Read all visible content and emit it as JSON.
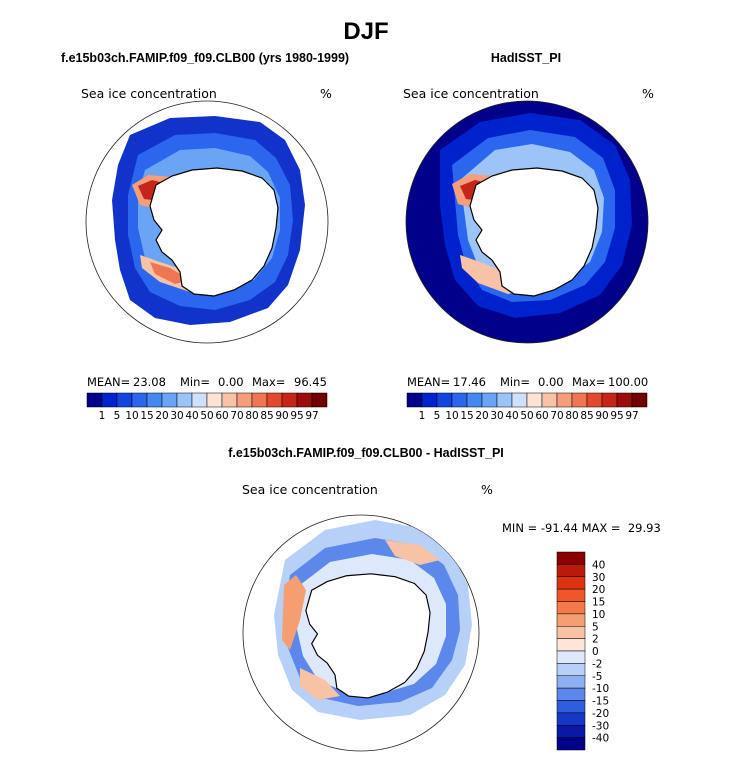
{
  "page_title": "DJF",
  "chart_data": [
    {
      "type": "heatmap",
      "projection": "south-polar-stereographic",
      "title": "f.e15b03ch.FAMIP.f09_f09.CLB00 (yrs 1980-1999)",
      "variable": "Sea ice concentration",
      "units": "%",
      "stats": {
        "mean_label": "MEAN=",
        "mean": "23.08",
        "min_label": "Min=",
        "min": "0.00",
        "max_label": "Max=",
        "max": "96.45"
      },
      "colorbar_levels": [
        "1",
        "5",
        "10",
        "15",
        "20",
        "30",
        "40",
        "50",
        "60",
        "70",
        "80",
        "85",
        "90",
        "95",
        "97"
      ],
      "colorbar_colors": [
        "#00008b",
        "#0022cc",
        "#1144e0",
        "#2a66ee",
        "#4488f0",
        "#6aa4f4",
        "#9cc4f8",
        "#cfe0fa",
        "#fde3d3",
        "#f8c2a6",
        "#f49e7c",
        "#ee7650",
        "#e24a2a",
        "#c4261a",
        "#9a0d0d",
        "#6e0000"
      ]
    },
    {
      "type": "heatmap",
      "projection": "south-polar-stereographic",
      "title": "HadISST_PI",
      "variable": "Sea ice concentration",
      "units": "%",
      "stats": {
        "mean_label": "MEAN=",
        "mean": "17.46",
        "min_label": "Min=",
        "min": "0.00",
        "max_label": "Max=",
        "max": "100.00"
      },
      "colorbar_levels": [
        "1",
        "5",
        "10",
        "15",
        "20",
        "30",
        "40",
        "50",
        "60",
        "70",
        "80",
        "85",
        "90",
        "95",
        "97"
      ],
      "colorbar_colors": [
        "#00008b",
        "#0022cc",
        "#1144e0",
        "#2a66ee",
        "#4488f0",
        "#6aa4f4",
        "#9cc4f8",
        "#cfe0fa",
        "#fde3d3",
        "#f8c2a6",
        "#f49e7c",
        "#ee7650",
        "#e24a2a",
        "#c4261a",
        "#9a0d0d",
        "#6e0000"
      ]
    },
    {
      "type": "heatmap",
      "projection": "south-polar-stereographic",
      "title": "f.e15b03ch.FAMIP.f09_f09.CLB00 - HadISST_PI",
      "variable": "Sea ice concentration",
      "units": "%",
      "stats_text": "MIN = -91.44 MAX =  29.93",
      "colorbar_levels": [
        "40",
        "30",
        "20",
        "15",
        "10",
        "5",
        "2",
        "0",
        "-2",
        "-5",
        "-10",
        "-15",
        "-20",
        "-30",
        "-40"
      ],
      "colorbar_colors": [
        "#8b0000",
        "#bb1a0a",
        "#dd3311",
        "#f0562a",
        "#f47a4a",
        "#f59e72",
        "#f8c2a4",
        "#fde6d8",
        "#dde9fb",
        "#b7d0f7",
        "#8cb0f2",
        "#5b88ea",
        "#2e5ee0",
        "#1437c8",
        "#0a18a8",
        "#00008b"
      ]
    }
  ]
}
